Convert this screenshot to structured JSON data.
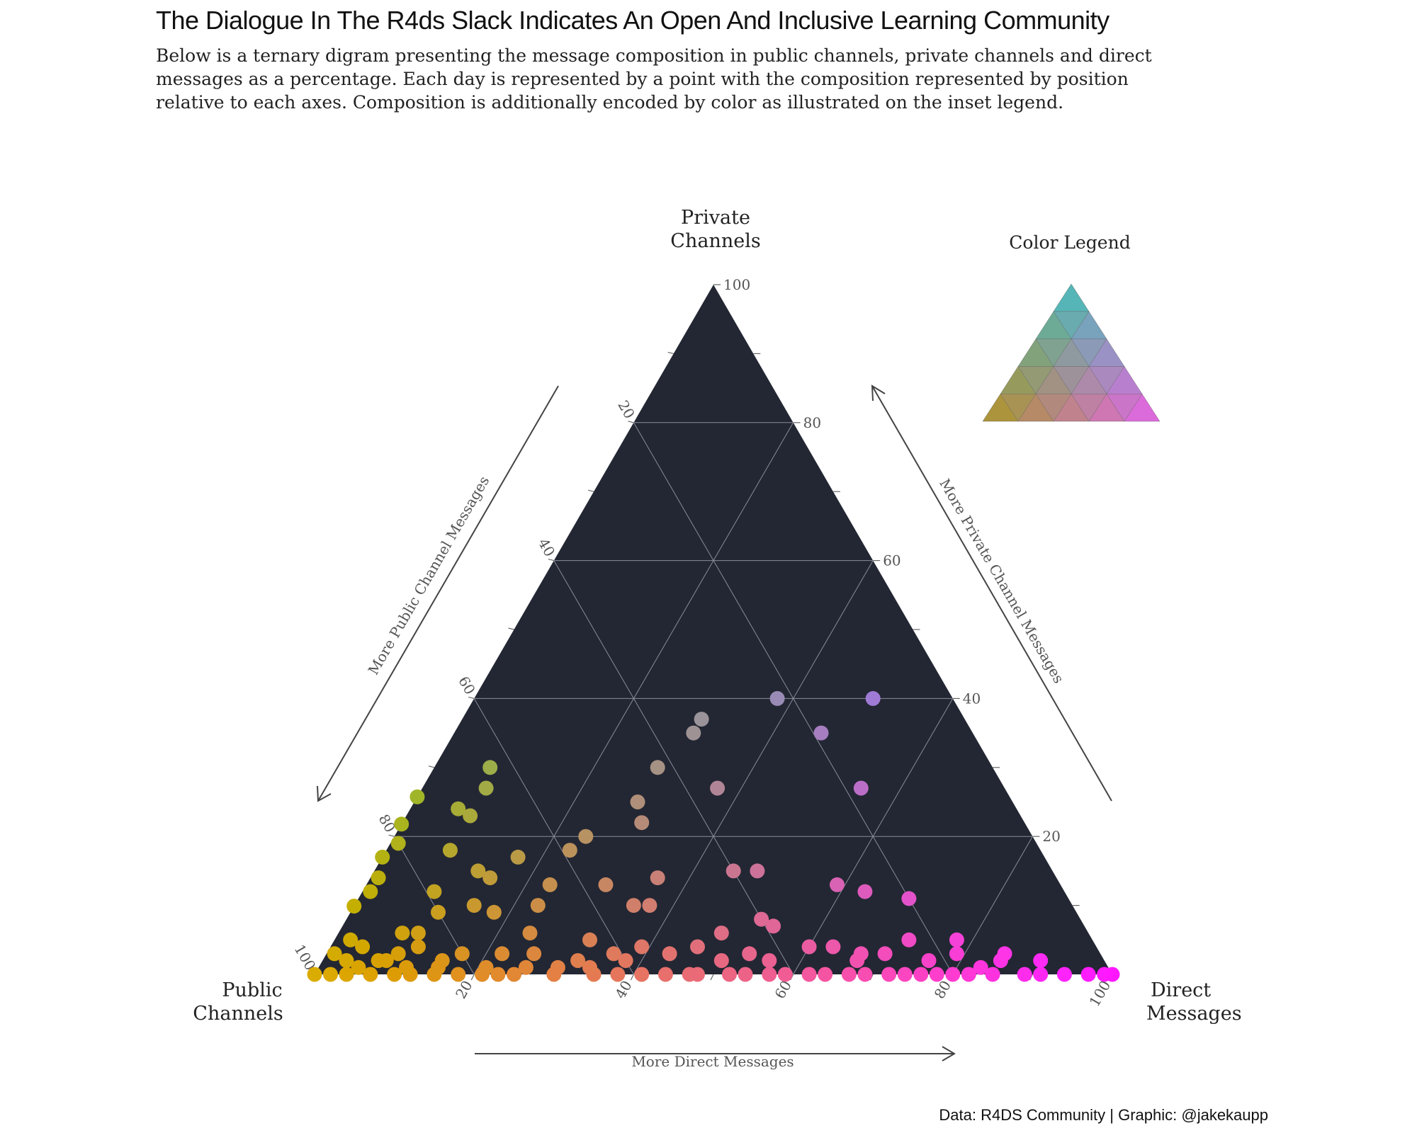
{
  "title": "The Dialogue In The R4ds Slack Indicates An Open And Inclusive Learning Community",
  "subtitle": "Below is a ternary digram presenting the message composition in public channels, private channels and direct messages as a percentage. Each day is represented by a point with the composition represented by position relative to each axes. Composition is additionally encoded by color as illustrated on the inset legend.",
  "caption": "Data: R4DS Community | Graphic: @jakekaupp",
  "colors": {
    "panel": "#232733",
    "grid": "#8a8d98",
    "public": "#c8a200",
    "private": "#1fd0cf",
    "direct": "#ff37ff",
    "axis_text": "#555555",
    "arrow": "#444444"
  },
  "chart_data": {
    "type": "scatter",
    "subtype": "ternary",
    "grid": true,
    "axes": {
      "left": {
        "label": "Public\nChannels",
        "arrow_label": "More Public Channel Messages",
        "ticks": [
          20,
          40,
          60,
          80,
          100
        ]
      },
      "top": {
        "label": "Private\nChannels",
        "arrow_label": "More Private Channel Messages",
        "ticks": [
          20,
          40,
          60,
          80,
          100
        ]
      },
      "right": {
        "label": "Direct\nMessages",
        "arrow_label": "More Direct Messages",
        "ticks": [
          20,
          40,
          60,
          80,
          100
        ]
      }
    },
    "legend": {
      "title": "Color Legend",
      "placement": "top-right"
    },
    "points": [
      [
        10,
        40,
        50
      ],
      [
        33,
        37,
        30
      ],
      [
        35,
        35,
        30
      ],
      [
        19,
        35,
        46
      ],
      [
        42,
        30,
        28
      ],
      [
        63,
        30,
        7
      ],
      [
        36,
        27,
        37
      ],
      [
        18,
        27,
        55
      ],
      [
        47,
        25,
        28
      ],
      [
        65,
        27,
        8
      ],
      [
        48,
        22,
        30
      ],
      [
        22,
        40,
        38
      ],
      [
        56,
        20,
        24
      ],
      [
        70,
        24,
        6
      ],
      [
        75,
        26,
        -1
      ],
      [
        69,
        23,
        8
      ],
      [
        79,
        22,
        -1
      ],
      [
        59,
        18,
        23
      ],
      [
        40,
        15,
        45
      ],
      [
        37,
        15,
        48
      ],
      [
        80,
        19,
        1
      ],
      [
        66,
        17,
        17
      ],
      [
        74,
        18,
        8
      ],
      [
        72,
        15,
        13
      ],
      [
        83,
        17,
        0
      ],
      [
        50,
        14,
        36
      ],
      [
        57,
        13,
        30
      ],
      [
        71,
        14,
        15
      ],
      [
        79,
        12,
        9
      ],
      [
        85,
        14,
        1
      ],
      [
        64,
        13,
        23
      ],
      [
        20,
        11,
        69
      ],
      [
        25,
        12,
        63
      ],
      [
        55,
        10,
        35
      ],
      [
        53,
        10,
        37
      ],
      [
        40,
        8,
        52
      ],
      [
        28,
        13,
        59
      ],
      [
        67,
        10,
        23
      ],
      [
        75,
        10,
        15
      ],
      [
        87,
        12,
        1
      ],
      [
        73,
        9,
        18
      ],
      [
        46,
        6,
        48
      ],
      [
        39,
        7,
        54
      ],
      [
        80,
        9,
        11
      ],
      [
        84,
        6,
        10
      ],
      [
        63,
        5,
        32
      ],
      [
        70,
        6,
        24
      ],
      [
        91,
        10,
        -1
      ],
      [
        57,
        4,
        39
      ],
      [
        50,
        4,
        46
      ],
      [
        44,
        3,
        53
      ],
      [
        33,
        4,
        63
      ],
      [
        30,
        3,
        67
      ],
      [
        23,
        5,
        72
      ],
      [
        17,
        5,
        78
      ],
      [
        18,
        3,
        79
      ],
      [
        13,
        2,
        85
      ],
      [
        61,
        3,
        36
      ],
      [
        66,
        2,
        32
      ],
      [
        75,
        3,
        22
      ],
      [
        80,
        3,
        17
      ],
      [
        85,
        4,
        11
      ],
      [
        88,
        3,
        9
      ],
      [
        83,
        2,
        15
      ],
      [
        91,
        2,
        7
      ],
      [
        86,
        6,
        8
      ],
      [
        93,
        5,
        2
      ],
      [
        95,
        2,
        3
      ],
      [
        73,
        1,
        26
      ],
      [
        69,
        1,
        30
      ],
      [
        59,
        0,
        41
      ],
      [
        53,
        0,
        47
      ],
      [
        48,
        0,
        52
      ],
      [
        43,
        0,
        57
      ],
      [
        38,
        0,
        62
      ],
      [
        33,
        0,
        67
      ],
      [
        28,
        0,
        72
      ],
      [
        24,
        0,
        76
      ],
      [
        20,
        0,
        80
      ],
      [
        15,
        0,
        85
      ],
      [
        11,
        0,
        89
      ],
      [
        9,
        0,
        91
      ],
      [
        6,
        0,
        94
      ],
      [
        3,
        0,
        97
      ],
      [
        1,
        0,
        99
      ],
      [
        0,
        0,
        100
      ],
      [
        96,
        0,
        4
      ],
      [
        93,
        0,
        7
      ],
      [
        90,
        0,
        10
      ],
      [
        88,
        0,
        12
      ],
      [
        85,
        0,
        15
      ],
      [
        82,
        0,
        18
      ],
      [
        79,
        0,
        21
      ],
      [
        77,
        0,
        23
      ],
      [
        75,
        0,
        25
      ],
      [
        70,
        0,
        30
      ],
      [
        65,
        0,
        35
      ],
      [
        62,
        0,
        38
      ],
      [
        56,
        0,
        44
      ],
      [
        52,
        0,
        48
      ],
      [
        46,
        0,
        54
      ],
      [
        41,
        0,
        59
      ],
      [
        36,
        0,
        64
      ],
      [
        31,
        0,
        69
      ],
      [
        26,
        0,
        74
      ],
      [
        22,
        0,
        78
      ],
      [
        18,
        0,
        82
      ],
      [
        98,
        0,
        2
      ],
      [
        100,
        0,
        0
      ],
      [
        96,
        3,
        1
      ],
      [
        92,
        4,
        4
      ],
      [
        88,
        1,
        11
      ],
      [
        84,
        1,
        15
      ],
      [
        78,
        1,
        21
      ],
      [
        71,
        3,
        26
      ],
      [
        65,
        1,
        34
      ],
      [
        60,
        2,
        38
      ],
      [
        54,
        3,
        43
      ],
      [
        48,
        2,
        50
      ],
      [
        42,
        2,
        56
      ],
      [
        36,
        4,
        60
      ],
      [
        31,
        2,
        67
      ],
      [
        27,
        3,
        70
      ],
      [
        22,
        2,
        76
      ],
      [
        16,
        1,
        83
      ],
      [
        12,
        3,
        85
      ],
      [
        8,
        2,
        90
      ],
      [
        94,
        1,
        5
      ],
      [
        90,
        2,
        8
      ]
    ]
  }
}
